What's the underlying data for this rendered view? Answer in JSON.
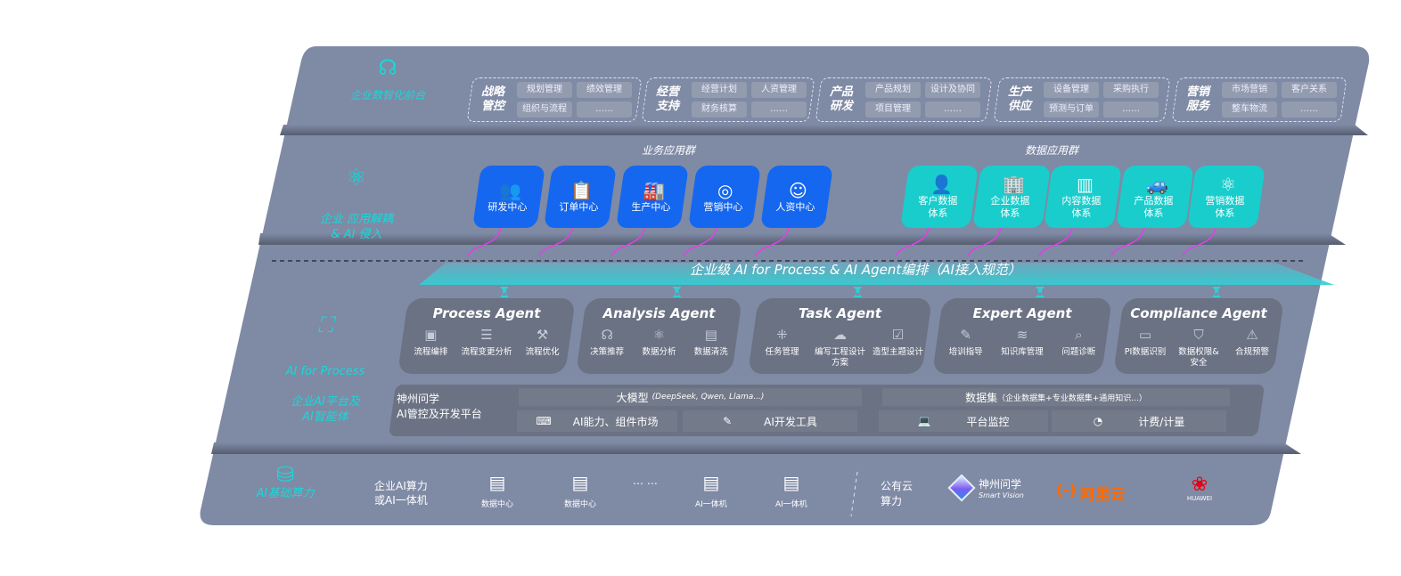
{
  "colors": {
    "panel": "#7f8aa5",
    "card_dark": "#6b7283",
    "business_blue": "#1567ef",
    "data_teal": "#19cdcc",
    "cyan_text": "#1ad8d8",
    "arrow_magenta": "#e040e8",
    "aliyun_orange": "#ff6a00",
    "huawei_red": "#e60012"
  },
  "layers": {
    "front": {
      "label": "企业数智化前台",
      "icon": "brain-icon"
    },
    "apps": {
      "label": "企业 应用解耦\n& AI 侵入",
      "icon": "molecule-icon"
    },
    "ai": {
      "label_en": "AI for Process",
      "label_cn": "企业AI平台及\nAI智能体",
      "icon": "face-scan-icon"
    },
    "base": {
      "label": "AI基础算力",
      "icon": "database-icon"
    }
  },
  "groups": [
    {
      "title": "战略\n管控",
      "chips": [
        "规划管理",
        "绩效管理",
        "组织与流程",
        "……"
      ]
    },
    {
      "title": "经营\n支持",
      "chips": [
        "经营计划",
        "人资管理",
        "财务核算",
        "……"
      ]
    },
    {
      "title": "产品\n研发",
      "chips": [
        "产品规划",
        "设计及协同",
        "项目管理",
        "……"
      ]
    },
    {
      "title": "生产\n供应",
      "chips": [
        "设备管理",
        "采购执行",
        "预测与订单",
        "……"
      ]
    },
    {
      "title": "营销\n服务",
      "chips": [
        "市场营销",
        "客户关系",
        "整车物流",
        "……"
      ]
    }
  ],
  "business_apps": {
    "title": "业务应用群",
    "items": [
      {
        "label": "研发中心",
        "icon": "team-icon"
      },
      {
        "label": "订单中心",
        "icon": "clipboard-icon"
      },
      {
        "label": "生产中心",
        "icon": "factory-icon"
      },
      {
        "label": "营销中心",
        "icon": "target-icon"
      },
      {
        "label": "人资中心",
        "icon": "people-icon"
      }
    ]
  },
  "data_apps": {
    "title": "数据应用群",
    "items": [
      {
        "label": "客户数据\n体系",
        "icon": "user-icon"
      },
      {
        "label": "企业数据\n体系",
        "icon": "building-icon"
      },
      {
        "label": "内容数据\n体系",
        "icon": "books-icon"
      },
      {
        "label": "产品数据\n体系",
        "icon": "car-icon"
      },
      {
        "label": "营销数据\n体系",
        "icon": "atom-icon"
      }
    ]
  },
  "orchestration": "企业级 AI for Process & AI Agent编排（AI接入规范）",
  "agents": [
    {
      "title": "Process Agent",
      "features": [
        {
          "label": "流程编排",
          "icon": "chart-window-icon"
        },
        {
          "label": "流程变更分析",
          "icon": "list-icon"
        },
        {
          "label": "流程优化",
          "icon": "tools-icon"
        }
      ]
    },
    {
      "title": "Analysis Agent",
      "features": [
        {
          "label": "决策推荐",
          "icon": "head-icon"
        },
        {
          "label": "数据分析",
          "icon": "atom-icon"
        },
        {
          "label": "数据清洗",
          "icon": "doc-clean-icon"
        }
      ]
    },
    {
      "title": "Task Agent",
      "features": [
        {
          "label": "任务管理",
          "icon": "network-icon"
        },
        {
          "label": "编写工程设计方案",
          "icon": "cloud-icon"
        },
        {
          "label": "造型主题设计",
          "icon": "checklist-icon"
        }
      ]
    },
    {
      "title": "Expert Agent",
      "features": [
        {
          "label": "培训指导",
          "icon": "pen-icon"
        },
        {
          "label": "知识库管理",
          "icon": "layers-icon"
        },
        {
          "label": "问题诊断",
          "icon": "diagnosis-icon"
        }
      ]
    },
    {
      "title": "Compliance Agent",
      "features": [
        {
          "label": "PI数据识别",
          "icon": "id-card-icon"
        },
        {
          "label": "数据权限&\n安全",
          "icon": "shield-icon"
        },
        {
          "label": "合规预警",
          "icon": "alert-icon"
        }
      ]
    }
  ],
  "platform": {
    "title": "神州问学\nAI管控及开发平台",
    "models_label": "大模型",
    "models_note": "(DeepSeek, Qwen, Llama...)",
    "market": "AI能力、组件市场",
    "devtools": "AI开发工具",
    "dataset_label": "数据集",
    "dataset_note": "（企业数据集+专业数据集+通用知识...）",
    "monitor": "平台监控",
    "billing": "计费/计量"
  },
  "base": {
    "enterprise_label": "企业AI算力\n或AI一体机",
    "items": [
      {
        "label": "数据中心",
        "icon": "server-icon"
      },
      {
        "label": "数据中心",
        "icon": "server-icon"
      },
      {
        "label": "AI一体机",
        "icon": "server-icon"
      },
      {
        "label": "AI一体机",
        "icon": "server-icon"
      }
    ],
    "ellipsis": "… …",
    "public_label": "公有云\n算力",
    "vendors": [
      {
        "name": "神州问学",
        "sub": "Smart Vision"
      },
      {
        "name": "阿里云",
        "mark": "(-)"
      },
      {
        "name": "HUAWEI"
      }
    ]
  }
}
